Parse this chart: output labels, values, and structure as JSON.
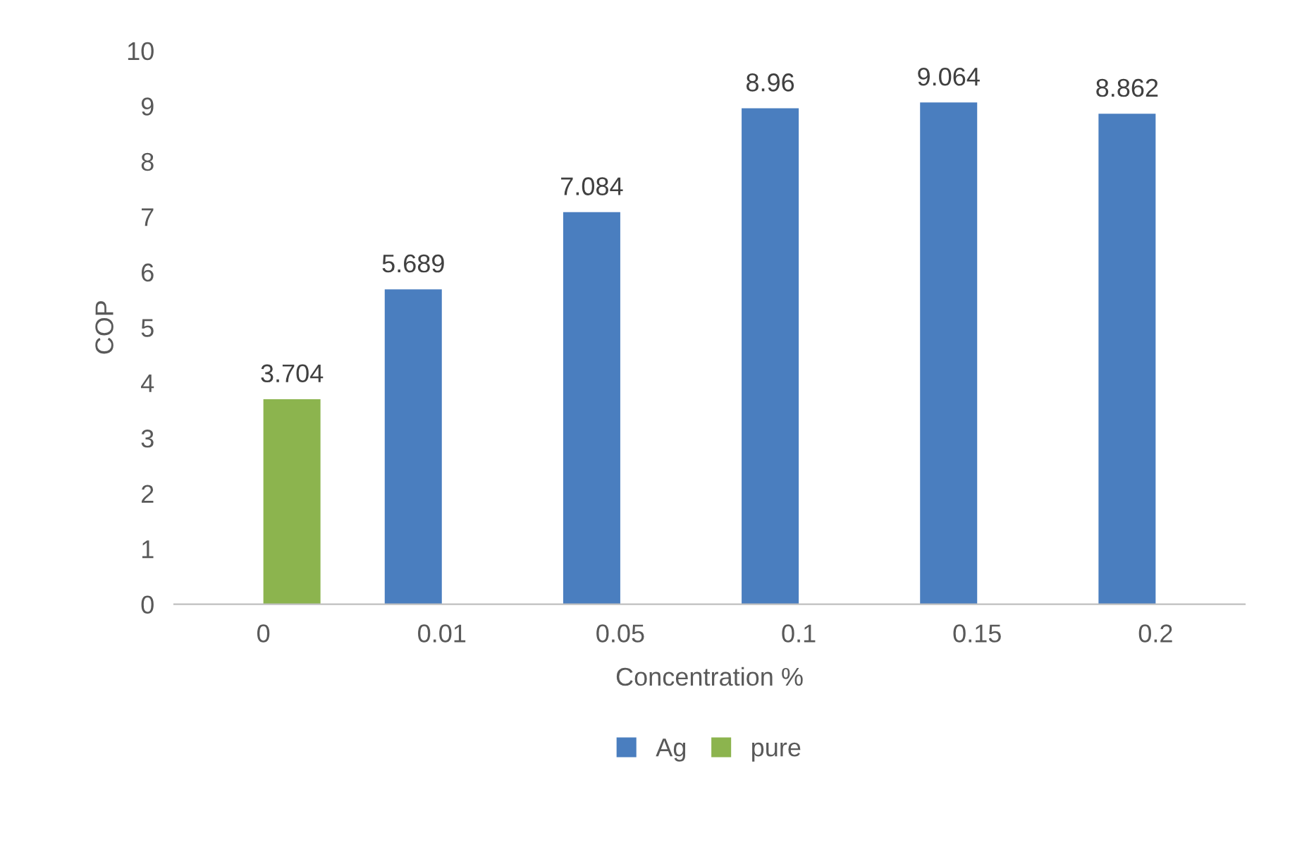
{
  "chart_data": {
    "type": "bar",
    "xlabel": "Concentration %",
    "ylabel": "COP",
    "categories": [
      "0",
      "0.01",
      "0.05",
      "0.1",
      "0.15",
      "0.2"
    ],
    "series": [
      {
        "name": "Ag",
        "color": "#4a7ebf",
        "values": [
          null,
          5.689,
          7.084,
          8.96,
          9.064,
          8.862
        ]
      },
      {
        "name": "pure",
        "color": "#8cb44e",
        "values": [
          3.704,
          null,
          null,
          null,
          null,
          null
        ]
      }
    ],
    "ylim": [
      0,
      10
    ],
    "yticks": [
      0,
      1,
      2,
      3,
      4,
      5,
      6,
      7,
      8,
      9,
      10
    ],
    "data_labels": true,
    "legend": "bottom",
    "grid": false
  }
}
